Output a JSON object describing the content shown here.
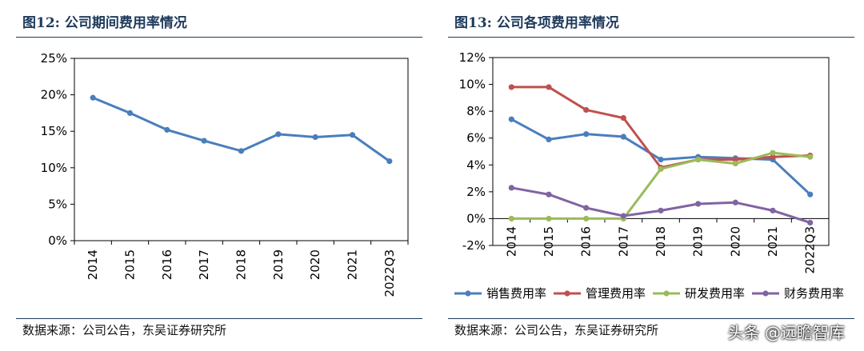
{
  "left": {
    "title": "图12:  公司期间费用率情况",
    "source": "数据来源：公司公告，东吴证券研究所"
  },
  "right": {
    "title": "图13:  公司各项费用率情况",
    "source": "数据来源：公司公告，东吴证券研究所"
  },
  "watermark": "头条 @远瞻智库",
  "chart_data": [
    {
      "type": "line",
      "title": "",
      "categories": [
        "2014",
        "2015",
        "2016",
        "2017",
        "2018",
        "2019",
        "2020",
        "2021",
        "2022Q3"
      ],
      "ylim": [
        0,
        25
      ],
      "yticks": [
        0,
        5,
        10,
        15,
        20,
        25
      ],
      "ytick_labels": [
        "0%",
        "5%",
        "10%",
        "15%",
        "20%",
        "25%"
      ],
      "grid": false,
      "series": [
        {
          "name": "",
          "color": "#4a7ebb",
          "values": [
            19.6,
            17.5,
            15.2,
            13.7,
            12.3,
            14.6,
            14.2,
            14.5,
            10.9
          ]
        }
      ]
    },
    {
      "type": "line",
      "title": "",
      "categories": [
        "2014",
        "2015",
        "2016",
        "2017",
        "2018",
        "2019",
        "2020",
        "2021",
        "2022Q3"
      ],
      "ylim": [
        -2,
        12
      ],
      "yticks": [
        -2,
        0,
        2,
        4,
        6,
        8,
        10,
        12
      ],
      "ytick_labels": [
        "-2%",
        "0%",
        "2%",
        "4%",
        "6%",
        "8%",
        "10%",
        "12%"
      ],
      "grid": false,
      "legend_position": "bottom",
      "series": [
        {
          "name": "销售费用率",
          "color": "#4a7ebb",
          "values": [
            7.4,
            5.9,
            6.3,
            6.1,
            4.4,
            4.6,
            4.5,
            4.4,
            1.8
          ]
        },
        {
          "name": "管理费用率",
          "color": "#c0504d",
          "values": [
            9.8,
            9.8,
            8.1,
            7.5,
            3.8,
            4.4,
            4.4,
            4.6,
            4.7
          ]
        },
        {
          "name": "研发费用率",
          "color": "#9bbb59",
          "values": [
            0.0,
            0.0,
            0.0,
            0.0,
            3.7,
            4.4,
            4.1,
            4.9,
            4.6
          ]
        },
        {
          "name": "财务费用率",
          "color": "#8064a2",
          "values": [
            2.3,
            1.8,
            0.8,
            0.2,
            0.6,
            1.1,
            1.2,
            0.6,
            -0.3
          ]
        }
      ]
    }
  ]
}
